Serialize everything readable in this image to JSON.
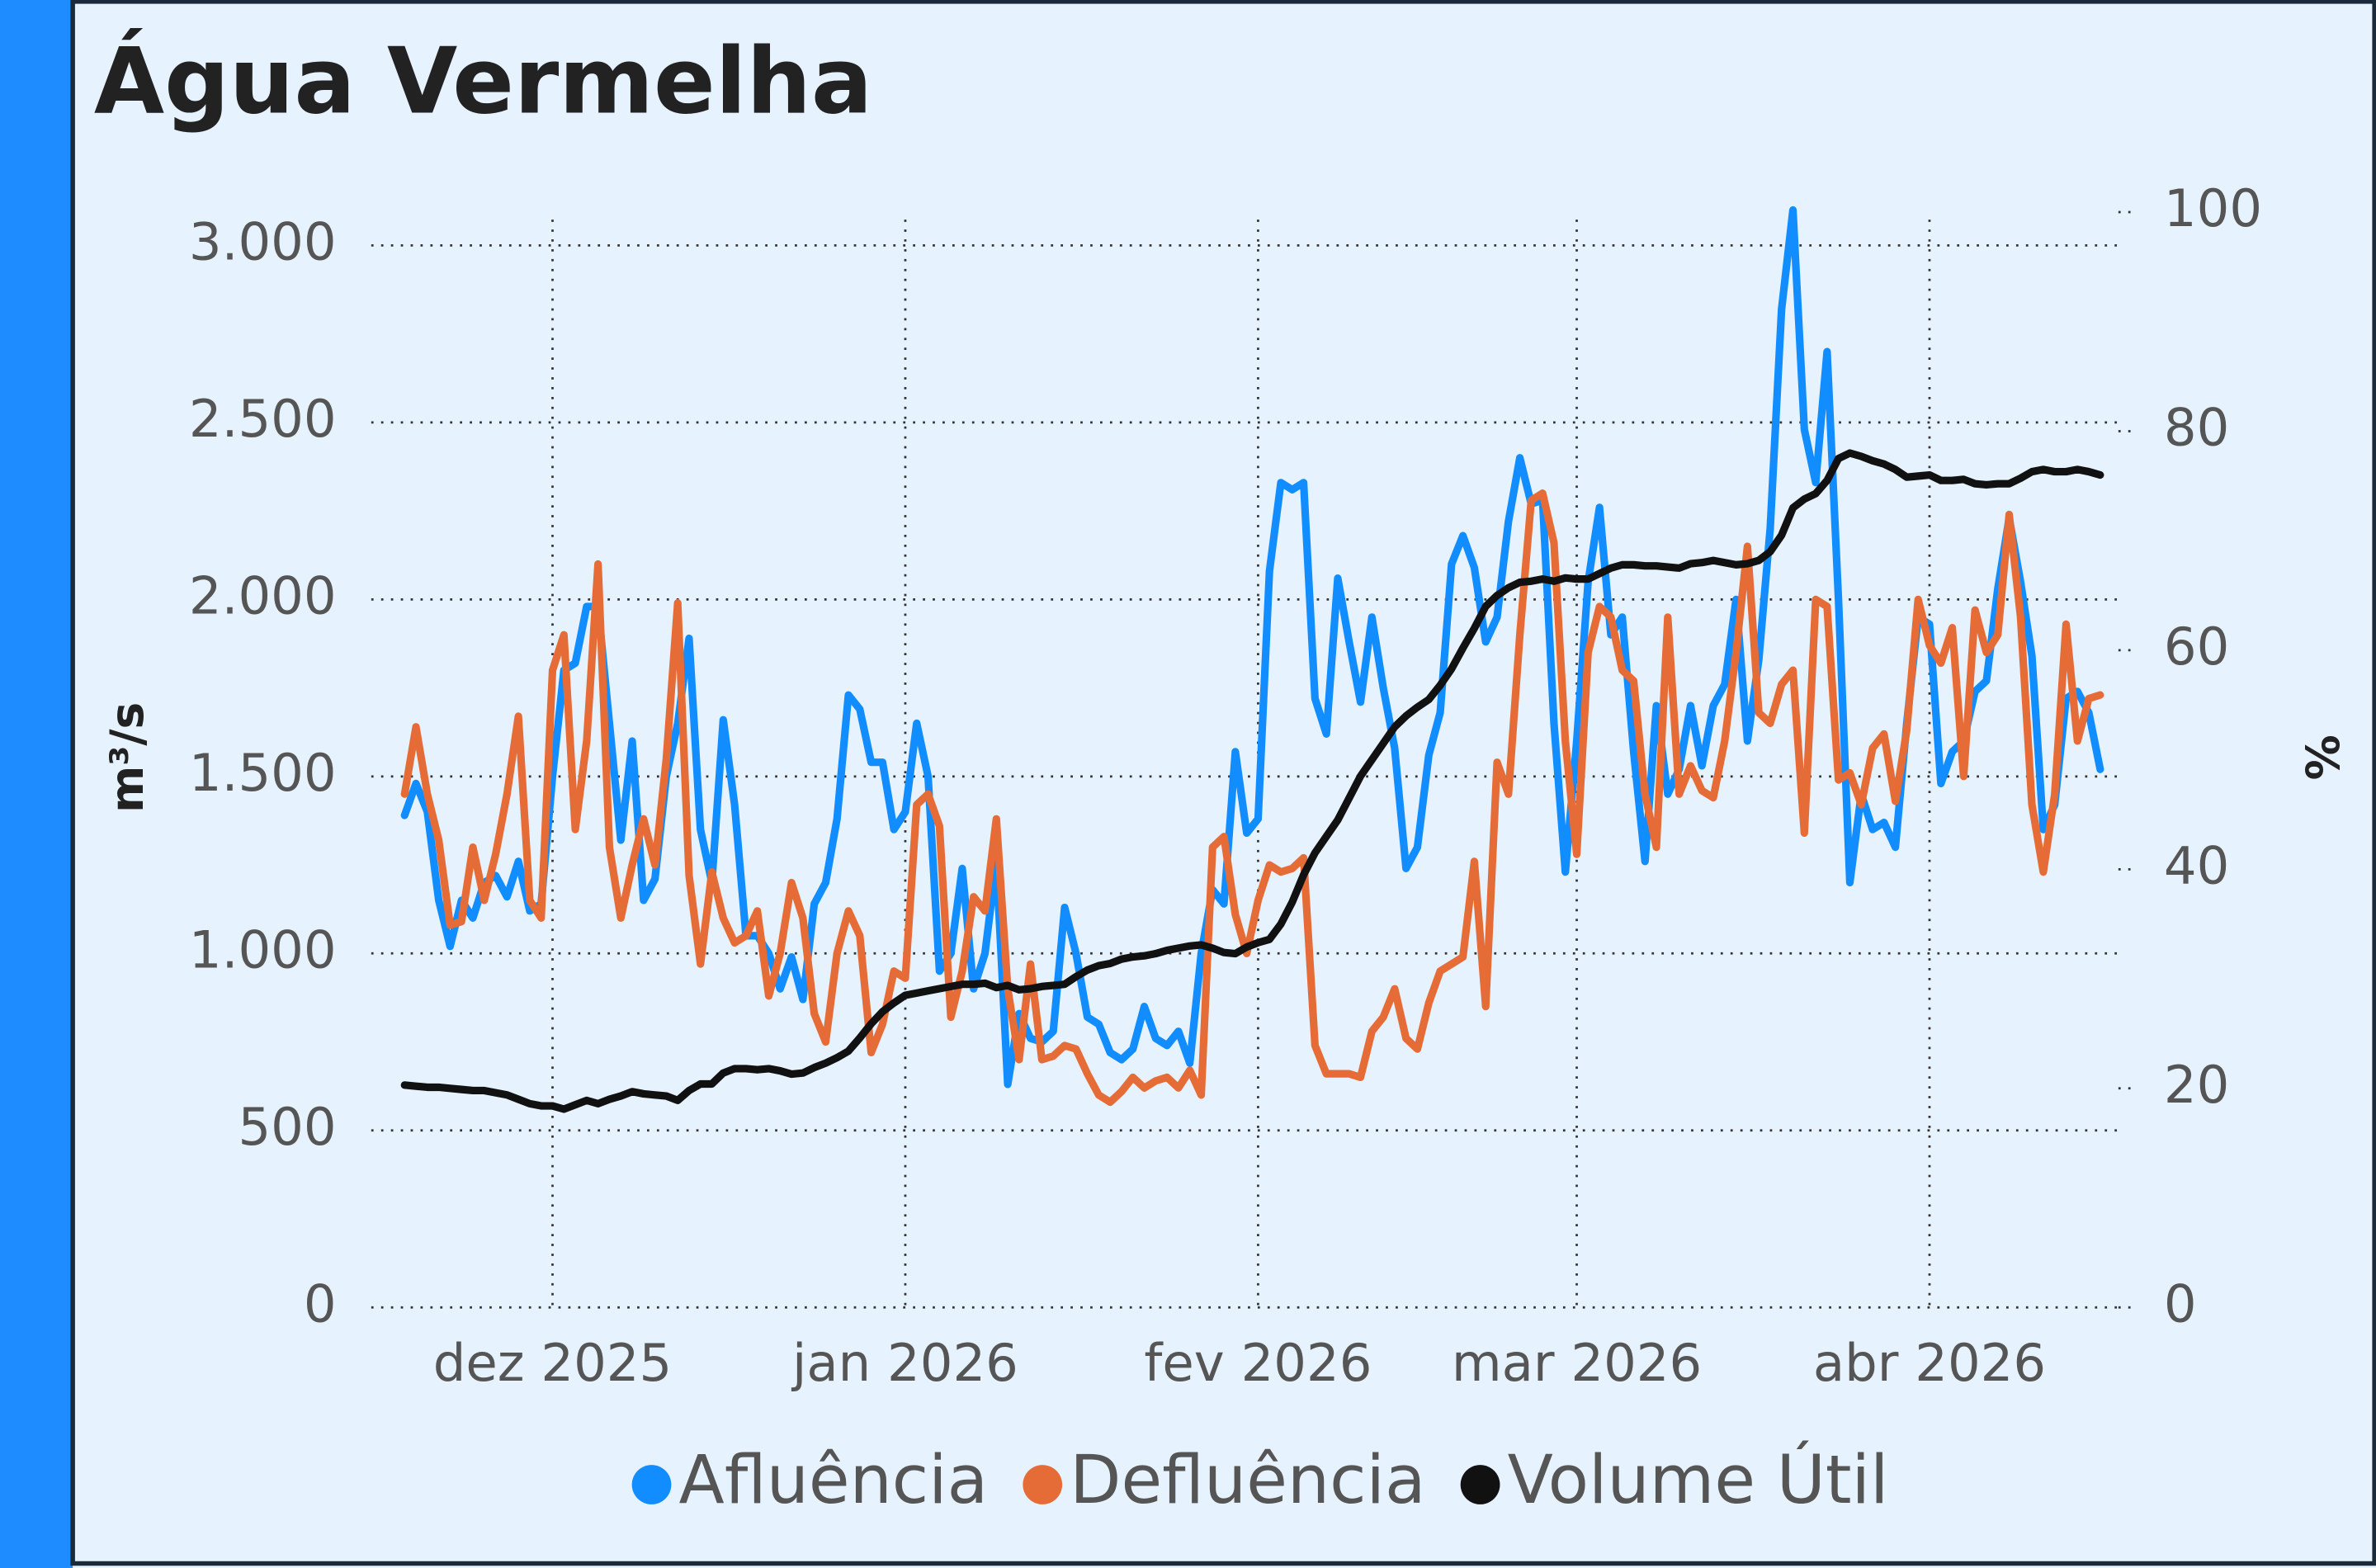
{
  "chart_data": {
    "type": "line",
    "title": "Água Vermelha",
    "y_label": "m³/s",
    "y2_label": "%",
    "xlim": [
      0,
      149
    ],
    "xticks": [
      {
        "value": 13,
        "label": "dez 2025"
      },
      {
        "value": 44,
        "label": "jan 2026"
      },
      {
        "value": 75,
        "label": "fev 2026"
      },
      {
        "value": 103,
        "label": "mar 2026"
      },
      {
        "value": 134,
        "label": "abr 2026"
      }
    ],
    "ylim": [
      0,
      3000
    ],
    "yticks": [
      0,
      500,
      {
        "value": 1000,
        "label": "1.000"
      },
      {
        "value": 1500,
        "label": "1.500"
      },
      {
        "value": 2000,
        "label": "2.000"
      },
      {
        "value": 2500,
        "label": "2.500"
      },
      {
        "value": 3000,
        "label": "3.000"
      }
    ],
    "y2lim": [
      0,
      100
    ],
    "y2ticks": [
      0,
      20,
      40,
      60,
      80,
      100
    ],
    "grid": true,
    "series": [
      {
        "name": "Afluência",
        "color": "#118dff",
        "values": [
          1390,
          1480,
          1400,
          1150,
          1020,
          1150,
          1100,
          1200,
          1220,
          1160,
          1260,
          1120,
          1140,
          1500,
          1800,
          1820,
          1980,
          1980,
          1650,
          1320,
          1600,
          1150,
          1210,
          1500,
          1650,
          1890,
          1350,
          1200,
          1660,
          1420,
          1050,
          1050,
          1000,
          900,
          990,
          870,
          1140,
          1200,
          1380,
          1730,
          1690,
          1540,
          1540,
          1350,
          1400,
          1650,
          1500,
          950,
          1000,
          1240,
          900,
          1000,
          1260,
          630,
          830,
          760,
          750,
          780,
          1130,
          1000,
          820,
          800,
          720,
          700,
          730,
          850,
          760,
          740,
          780,
          690,
          1000,
          1180,
          1140,
          1570,
          1340,
          1380,
          2080,
          2330,
          2310,
          2330,
          1720,
          1620,
          2060,
          1880,
          1710,
          1950,
          1750,
          1580,
          1240,
          1300,
          1560,
          1680,
          2100,
          2180,
          2090,
          1880,
          1950,
          2220,
          2400,
          2270,
          2280,
          1650,
          1230,
          1600,
          2050,
          2260,
          1900,
          1950,
          1570,
          1260,
          1700,
          1450,
          1520,
          1700,
          1530,
          1700,
          1760,
          2000,
          1600,
          1830,
          2200,
          2820,
          3100,
          2480,
          2330,
          2700,
          2000,
          1200,
          1450,
          1350,
          1370,
          1300,
          1650,
          1950,
          1930,
          1480,
          1570,
          1600,
          1740,
          1770,
          2030,
          2230,
          2050,
          1840,
          1350,
          1420,
          1720,
          1740,
          1680,
          1520
        ]
      },
      {
        "name": "Defluência",
        "color": "#e66c37",
        "values": [
          1450,
          1640,
          1450,
          1320,
          1080,
          1090,
          1300,
          1150,
          1280,
          1450,
          1670,
          1150,
          1100,
          1800,
          1900,
          1350,
          1600,
          2100,
          1300,
          1100,
          1250,
          1380,
          1250,
          1550,
          1990,
          1220,
          970,
          1230,
          1100,
          1030,
          1050,
          1120,
          880,
          1000,
          1200,
          1100,
          830,
          750,
          1000,
          1120,
          1050,
          720,
          800,
          950,
          930,
          1420,
          1450,
          1360,
          820,
          950,
          1160,
          1120,
          1380,
          900,
          700,
          970,
          700,
          710,
          740,
          730,
          660,
          600,
          580,
          610,
          650,
          620,
          640,
          650,
          620,
          670,
          600,
          1300,
          1330,
          1110,
          1000,
          1150,
          1250,
          1230,
          1240,
          1270,
          740,
          660,
          660,
          660,
          650,
          780,
          820,
          900,
          760,
          730,
          860,
          950,
          970,
          990,
          1260,
          850,
          1540,
          1450,
          1900,
          2280,
          2300,
          2160,
          1600,
          1280,
          1850,
          1980,
          1950,
          1800,
          1770,
          1450,
          1300,
          1950,
          1450,
          1530,
          1460,
          1440,
          1600,
          1850,
          2150,
          1680,
          1650,
          1760,
          1800,
          1340,
          2000,
          1980,
          1490,
          1510,
          1420,
          1580,
          1620,
          1430,
          1630,
          2000,
          1870,
          1820,
          1920,
          1500,
          1970,
          1850,
          1900,
          2240,
          1950,
          1420,
          1230,
          1450,
          1930,
          1600,
          1720,
          1730
        ]
      },
      {
        "name": "Volume Útil",
        "color": "#111111",
        "axis": "y2",
        "values": [
          20.3,
          20.2,
          20.1,
          20.1,
          20.0,
          19.9,
          19.8,
          19.8,
          19.6,
          19.4,
          19.0,
          18.6,
          18.4,
          18.4,
          18.1,
          18.5,
          18.9,
          18.6,
          19.0,
          19.3,
          19.7,
          19.5,
          19.4,
          19.3,
          18.9,
          19.8,
          20.4,
          20.4,
          21.4,
          21.8,
          21.8,
          21.7,
          21.8,
          21.6,
          21.3,
          21.4,
          21.9,
          22.3,
          22.8,
          23.4,
          24.6,
          25.9,
          27.0,
          27.8,
          28.5,
          28.7,
          28.9,
          29.1,
          29.3,
          29.5,
          29.5,
          29.6,
          29.2,
          29.4,
          29.0,
          29.1,
          29.3,
          29.4,
          29.5,
          30.2,
          30.8,
          31.2,
          31.4,
          31.8,
          32.0,
          32.1,
          32.3,
          32.6,
          32.8,
          33.0,
          33.1,
          32.8,
          32.4,
          32.3,
          32.9,
          33.3,
          33.6,
          35.0,
          37.0,
          39.5,
          41.5,
          43.0,
          44.5,
          46.5,
          48.5,
          50.0,
          51.5,
          53.0,
          54.0,
          54.8,
          55.5,
          56.8,
          58.3,
          60.2,
          62.0,
          64.0,
          65.0,
          65.7,
          66.2,
          66.3,
          66.5,
          66.3,
          66.6,
          66.5,
          66.5,
          67.0,
          67.5,
          67.8,
          67.8,
          67.7,
          67.7,
          67.6,
          67.5,
          67.9,
          68.0,
          68.2,
          68.0,
          67.8,
          67.9,
          68.2,
          69.0,
          70.5,
          73.0,
          73.8,
          74.3,
          75.5,
          77.5,
          78.0,
          77.7,
          77.3,
          77.0,
          76.5,
          75.8,
          75.9,
          76.0,
          75.5,
          75.5,
          75.6,
          75.2,
          75.1,
          75.2,
          75.2,
          75.7,
          76.3,
          76.5,
          76.3,
          76.3,
          76.5,
          76.3,
          76.0
        ]
      }
    ]
  }
}
